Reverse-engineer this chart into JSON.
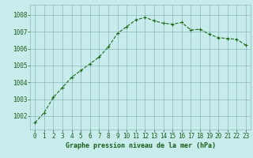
{
  "x": [
    0,
    1,
    2,
    3,
    4,
    5,
    6,
    7,
    8,
    9,
    10,
    11,
    12,
    13,
    14,
    15,
    16,
    17,
    18,
    19,
    20,
    21,
    22,
    23
  ],
  "y": [
    1001.6,
    1002.2,
    1003.1,
    1003.7,
    1004.3,
    1004.7,
    1005.1,
    1005.5,
    1006.1,
    1006.9,
    1007.3,
    1007.7,
    1007.85,
    1007.65,
    1007.5,
    1007.45,
    1007.55,
    1007.1,
    1007.15,
    1006.85,
    1006.65,
    1006.6,
    1006.55,
    1006.2
  ],
  "line_color": "#1a6b1a",
  "marker": "+",
  "marker_size": 3,
  "bg_color": "#c8ecec",
  "grid_color": "#88bbbb",
  "xlabel": "Graphe pression niveau de la mer (hPa)",
  "xlabel_color": "#1a5c1a",
  "xlabel_fontsize": 6.0,
  "tick_color": "#1a5c1a",
  "tick_fontsize": 5.5,
  "ylabel_ticks": [
    1002,
    1003,
    1004,
    1005,
    1006,
    1007,
    1008
  ],
  "ylim": [
    1001.2,
    1008.6
  ],
  "xlim": [
    -0.5,
    23.5
  ],
  "xticks": [
    0,
    1,
    2,
    3,
    4,
    5,
    6,
    7,
    8,
    9,
    10,
    11,
    12,
    13,
    14,
    15,
    16,
    17,
    18,
    19,
    20,
    21,
    22,
    23
  ]
}
